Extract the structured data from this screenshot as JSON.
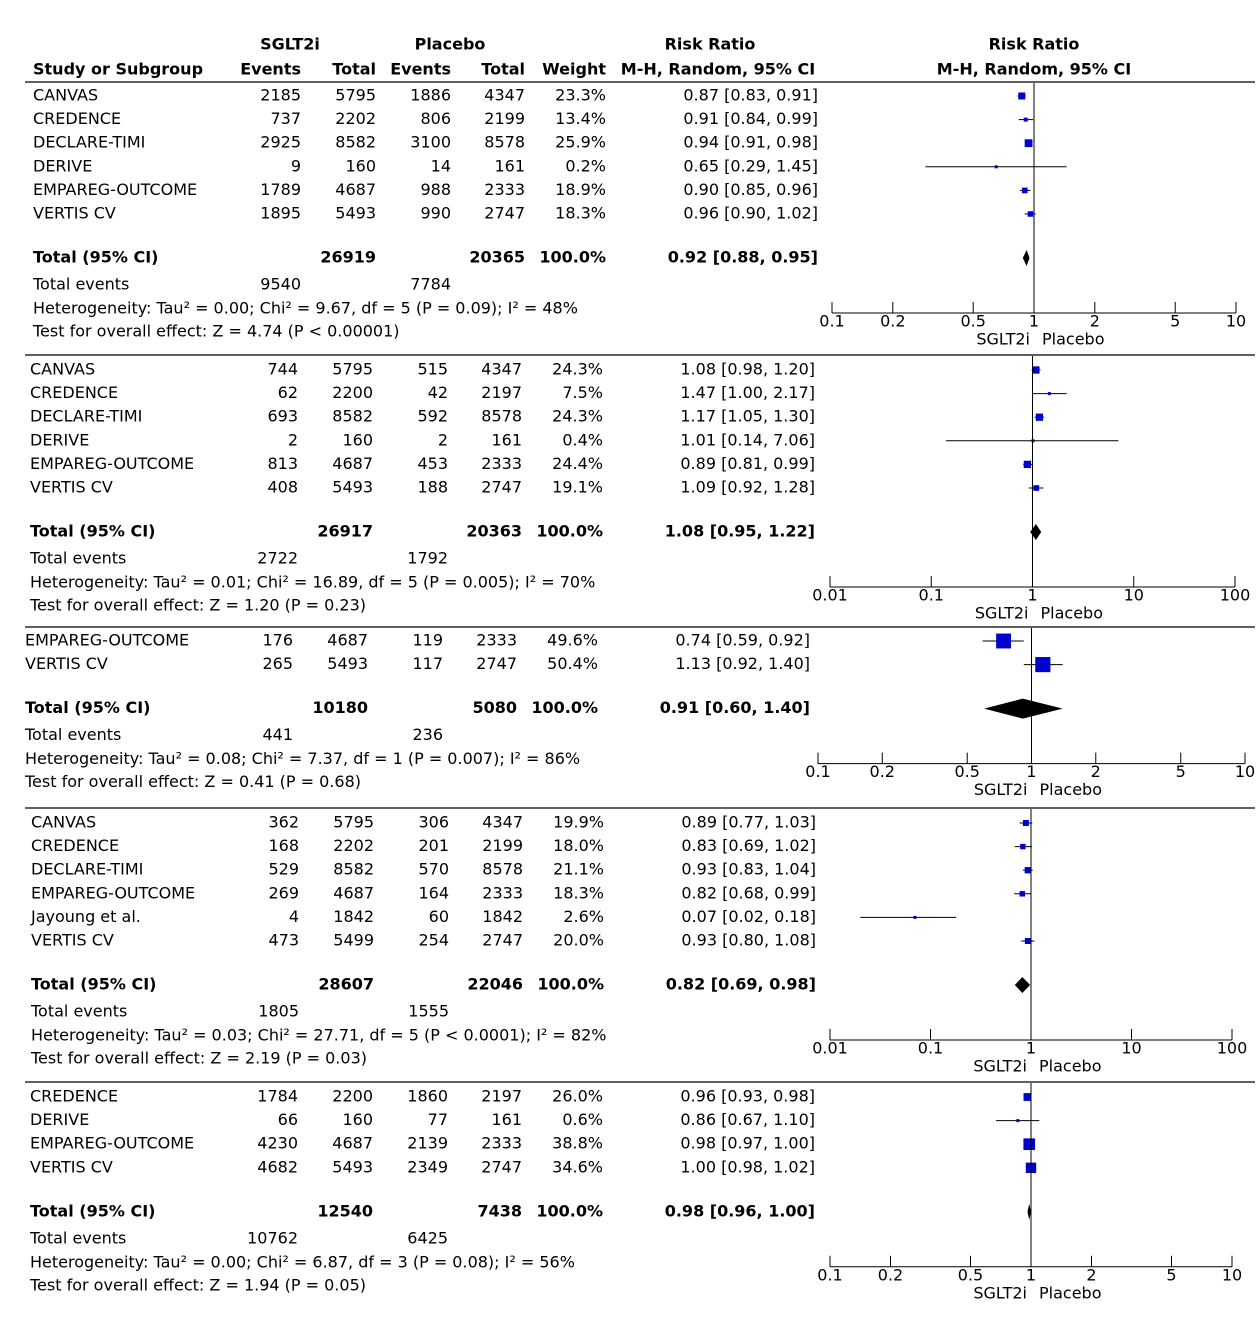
{
  "header": {
    "group_1": "SGLT2i",
    "group_2": "Placebo",
    "study": "Study or Subgroup",
    "events_1": "Events",
    "total_1": "Total",
    "events_2": "Events",
    "total_2": "Total",
    "weight": "Weight",
    "effect": "Risk Ratio",
    "method": "M-H, Random, 95% CI",
    "plot_effect": "Risk Ratio",
    "plot_method": "M-H, Random, 95% CI"
  },
  "chart_data": [
    {
      "type": "forest",
      "log_scale": true,
      "color": "#0000cc",
      "xlim": [
        0.1,
        10
      ],
      "xticks": [
        0.1,
        0.2,
        0.5,
        1,
        2,
        5,
        10
      ],
      "favours": [
        "SGLT2i",
        "Placebo"
      ],
      "studies": [
        {
          "name": "CANVAS",
          "events_1": 2185,
          "total_1": 5795,
          "events_2": 1886,
          "total_2": 4347,
          "weight": 23.3,
          "weight_label": "23.3%",
          "rr": 0.87,
          "lo": 0.83,
          "hi": 0.91,
          "rr_label": "0.87 [0.83, 0.91]"
        },
        {
          "name": "CREDENCE",
          "events_1": 737,
          "total_1": 2202,
          "events_2": 806,
          "total_2": 2199,
          "weight": 13.4,
          "weight_label": "13.4%",
          "rr": 0.91,
          "lo": 0.84,
          "hi": 0.99,
          "rr_label": "0.91 [0.84, 0.99]"
        },
        {
          "name": "DECLARE-TIMI",
          "events_1": 2925,
          "total_1": 8582,
          "events_2": 3100,
          "total_2": 8578,
          "weight": 25.9,
          "weight_label": "25.9%",
          "rr": 0.94,
          "lo": 0.91,
          "hi": 0.98,
          "rr_label": "0.94 [0.91, 0.98]"
        },
        {
          "name": "DERIVE",
          "events_1": 9,
          "total_1": 160,
          "events_2": 14,
          "total_2": 161,
          "weight": 0.2,
          "weight_label": "0.2%",
          "rr": 0.65,
          "lo": 0.29,
          "hi": 1.45,
          "rr_label": "0.65 [0.29, 1.45]"
        },
        {
          "name": "EMPAREG-OUTCOME",
          "events_1": 1789,
          "total_1": 4687,
          "events_2": 988,
          "total_2": 2333,
          "weight": 18.9,
          "weight_label": "18.9%",
          "rr": 0.9,
          "lo": 0.85,
          "hi": 0.96,
          "rr_label": "0.90 [0.85, 0.96]"
        },
        {
          "name": "VERTIS CV",
          "events_1": 1895,
          "total_1": 5493,
          "events_2": 990,
          "total_2": 2747,
          "weight": 18.3,
          "weight_label": "18.3%",
          "rr": 0.96,
          "lo": 0.9,
          "hi": 1.02,
          "rr_label": "0.96 [0.90, 1.02]"
        }
      ],
      "total": {
        "name": "Total (95% CI)",
        "total_1": 26919,
        "total_2": 20365,
        "weight": 100,
        "weight_label": "100.0%",
        "rr": 0.92,
        "lo": 0.88,
        "hi": 0.95,
        "rr_label": "0.92 [0.88, 0.95]"
      },
      "total_events": {
        "name": "Total events",
        "events_1": 9540,
        "events_2": 7784
      },
      "heterogeneity": "Heterogeneity: Tau² = 0.00; Chi² = 9.67, df = 5 (P = 0.09); I² = 48%",
      "overall_effect": "Test for overall effect: Z = 4.74 (P < 0.00001)"
    },
    {
      "type": "forest",
      "log_scale": true,
      "color": "#0000cc",
      "xlim": [
        0.01,
        100
      ],
      "xticks": [
        0.01,
        0.1,
        1,
        10,
        100
      ],
      "favours": [
        "SGLT2i",
        "Placebo"
      ],
      "studies": [
        {
          "name": "CANVAS",
          "events_1": 744,
          "total_1": 5795,
          "events_2": 515,
          "total_2": 4347,
          "weight": 24.3,
          "weight_label": "24.3%",
          "rr": 1.08,
          "lo": 0.98,
          "hi": 1.2,
          "rr_label": "1.08 [0.98, 1.20]"
        },
        {
          "name": "CREDENCE",
          "events_1": 62,
          "total_1": 2200,
          "events_2": 42,
          "total_2": 2197,
          "weight": 7.5,
          "weight_label": "7.5%",
          "rr": 1.47,
          "lo": 1.0,
          "hi": 2.17,
          "rr_label": "1.47 [1.00, 2.17]"
        },
        {
          "name": "DECLARE-TIMI",
          "events_1": 693,
          "total_1": 8582,
          "events_2": 592,
          "total_2": 8578,
          "weight": 24.3,
          "weight_label": "24.3%",
          "rr": 1.17,
          "lo": 1.05,
          "hi": 1.3,
          "rr_label": "1.17 [1.05, 1.30]"
        },
        {
          "name": "DERIVE",
          "events_1": 2,
          "total_1": 160,
          "events_2": 2,
          "total_2": 161,
          "weight": 0.4,
          "weight_label": "0.4%",
          "rr": 1.01,
          "lo": 0.14,
          "hi": 7.06,
          "rr_label": "1.01 [0.14, 7.06]"
        },
        {
          "name": "EMPAREG-OUTCOME",
          "events_1": 813,
          "total_1": 4687,
          "events_2": 453,
          "total_2": 2333,
          "weight": 24.4,
          "weight_label": "24.4%",
          "rr": 0.89,
          "lo": 0.81,
          "hi": 0.99,
          "rr_label": "0.89 [0.81, 0.99]"
        },
        {
          "name": "VERTIS CV",
          "events_1": 408,
          "total_1": 5493,
          "events_2": 188,
          "total_2": 2747,
          "weight": 19.1,
          "weight_label": "19.1%",
          "rr": 1.09,
          "lo": 0.92,
          "hi": 1.28,
          "rr_label": "1.09 [0.92, 1.28]"
        }
      ],
      "total": {
        "name": "Total (95% CI)",
        "total_1": 26917,
        "total_2": 20363,
        "weight": 100,
        "weight_label": "100.0%",
        "rr": 1.08,
        "lo": 0.95,
        "hi": 1.22,
        "rr_label": "1.08 [0.95, 1.22]"
      },
      "total_events": {
        "name": "Total events",
        "events_1": 2722,
        "events_2": 1792
      },
      "heterogeneity": "Heterogeneity: Tau² = 0.01; Chi² = 16.89, df = 5 (P = 0.005); I² = 70%",
      "overall_effect": "Test for overall effect: Z = 1.20 (P = 0.23)"
    },
    {
      "type": "forest",
      "log_scale": true,
      "color": "#0000cc",
      "xlim": [
        0.1,
        10
      ],
      "xticks": [
        0.1,
        0.2,
        0.5,
        1,
        2,
        5,
        10
      ],
      "favours": [
        "SGLT2i",
        "Placebo"
      ],
      "studies": [
        {
          "name": "EMPAREG-OUTCOME",
          "events_1": 176,
          "total_1": 4687,
          "events_2": 119,
          "total_2": 2333,
          "weight": 49.6,
          "weight_label": "49.6%",
          "rr": 0.74,
          "lo": 0.59,
          "hi": 0.92,
          "rr_label": "0.74 [0.59, 0.92]"
        },
        {
          "name": "VERTIS CV",
          "events_1": 265,
          "total_1": 5493,
          "events_2": 117,
          "total_2": 2747,
          "weight": 50.4,
          "weight_label": "50.4%",
          "rr": 1.13,
          "lo": 0.92,
          "hi": 1.4,
          "rr_label": "1.13 [0.92, 1.40]"
        }
      ],
      "total": {
        "name": "Total (95% CI)",
        "total_1": 10180,
        "total_2": 5080,
        "weight": 100,
        "weight_label": "100.0%",
        "rr": 0.91,
        "lo": 0.6,
        "hi": 1.4,
        "rr_label": "0.91 [0.60, 1.40]"
      },
      "total_events": {
        "name": "Total events",
        "events_1": 441,
        "events_2": 236
      },
      "heterogeneity": "Heterogeneity: Tau² = 0.08; Chi² = 7.37, df = 1 (P = 0.007); I² = 86%",
      "overall_effect": "Test for overall effect: Z = 0.41 (P = 0.68)"
    },
    {
      "type": "forest",
      "log_scale": true,
      "color": "#0000cc",
      "xlim": [
        0.01,
        100
      ],
      "xticks": [
        0.01,
        0.1,
        1,
        10,
        100
      ],
      "favours": [
        "SGLT2i",
        "Placebo"
      ],
      "studies": [
        {
          "name": "CANVAS",
          "events_1": 362,
          "total_1": 5795,
          "events_2": 306,
          "total_2": 4347,
          "weight": 19.9,
          "weight_label": "19.9%",
          "rr": 0.89,
          "lo": 0.77,
          "hi": 1.03,
          "rr_label": "0.89 [0.77, 1.03]"
        },
        {
          "name": "CREDENCE",
          "events_1": 168,
          "total_1": 2202,
          "events_2": 201,
          "total_2": 2199,
          "weight": 18.0,
          "weight_label": "18.0%",
          "rr": 0.83,
          "lo": 0.69,
          "hi": 1.02,
          "rr_label": "0.83 [0.69, 1.02]"
        },
        {
          "name": "DECLARE-TIMI",
          "events_1": 529,
          "total_1": 8582,
          "events_2": 570,
          "total_2": 8578,
          "weight": 21.1,
          "weight_label": "21.1%",
          "rr": 0.93,
          "lo": 0.83,
          "hi": 1.04,
          "rr_label": "0.93 [0.83, 1.04]"
        },
        {
          "name": "EMPAREG-OUTCOME",
          "events_1": 269,
          "total_1": 4687,
          "events_2": 164,
          "total_2": 2333,
          "weight": 18.3,
          "weight_label": "18.3%",
          "rr": 0.82,
          "lo": 0.68,
          "hi": 0.99,
          "rr_label": "0.82 [0.68, 0.99]"
        },
        {
          "name": "Jayoung et al.",
          "events_1": 4,
          "total_1": 1842,
          "events_2": 60,
          "total_2": 1842,
          "weight": 2.6,
          "weight_label": "2.6%",
          "rr": 0.07,
          "lo": 0.02,
          "hi": 0.18,
          "rr_label": "0.07 [0.02, 0.18]"
        },
        {
          "name": "VERTIS CV",
          "events_1": 473,
          "total_1": 5499,
          "events_2": 254,
          "total_2": 2747,
          "weight": 20.0,
          "weight_label": "20.0%",
          "rr": 0.93,
          "lo": 0.8,
          "hi": 1.08,
          "rr_label": "0.93 [0.80, 1.08]"
        }
      ],
      "total": {
        "name": "Total (95% CI)",
        "total_1": 28607,
        "total_2": 22046,
        "weight": 100,
        "weight_label": "100.0%",
        "rr": 0.82,
        "lo": 0.69,
        "hi": 0.98,
        "rr_label": "0.82 [0.69, 0.98]"
      },
      "total_events": {
        "name": "Total events",
        "events_1": 1805,
        "events_2": 1555
      },
      "heterogeneity": "Heterogeneity: Tau² = 0.03; Chi² = 27.71, df = 5 (P < 0.0001); I² = 82%",
      "overall_effect": "Test for overall effect: Z = 2.19 (P = 0.03)"
    },
    {
      "type": "forest",
      "log_scale": true,
      "color": "#0000cc",
      "xlim": [
        0.1,
        10
      ],
      "xticks": [
        0.1,
        0.2,
        0.5,
        1,
        2,
        5,
        10
      ],
      "favours": [
        "SGLT2i",
        "Placebo"
      ],
      "studies": [
        {
          "name": "CREDENCE",
          "events_1": 1784,
          "total_1": 2200,
          "events_2": 1860,
          "total_2": 2197,
          "weight": 26.0,
          "weight_label": "26.0%",
          "rr": 0.96,
          "lo": 0.93,
          "hi": 0.98,
          "rr_label": "0.96 [0.93, 0.98]"
        },
        {
          "name": "DERIVE",
          "events_1": 66,
          "total_1": 160,
          "events_2": 77,
          "total_2": 161,
          "weight": 0.6,
          "weight_label": "0.6%",
          "rr": 0.86,
          "lo": 0.67,
          "hi": 1.1,
          "rr_label": "0.86 [0.67, 1.10]"
        },
        {
          "name": "EMPAREG-OUTCOME",
          "events_1": 4230,
          "total_1": 4687,
          "events_2": 2139,
          "total_2": 2333,
          "weight": 38.8,
          "weight_label": "38.8%",
          "rr": 0.98,
          "lo": 0.97,
          "hi": 1.0,
          "rr_label": "0.98 [0.97, 1.00]"
        },
        {
          "name": "VERTIS CV",
          "events_1": 4682,
          "total_1": 5493,
          "events_2": 2349,
          "total_2": 2747,
          "weight": 34.6,
          "weight_label": "34.6%",
          "rr": 1.0,
          "lo": 0.98,
          "hi": 1.02,
          "rr_label": "1.00 [0.98, 1.02]"
        }
      ],
      "total": {
        "name": "Total (95% CI)",
        "total_1": 12540,
        "total_2": 7438,
        "weight": 100,
        "weight_label": "100.0%",
        "rr": 0.98,
        "lo": 0.96,
        "hi": 1.0,
        "rr_label": "0.98 [0.96, 1.00]"
      },
      "total_events": {
        "name": "Total events",
        "events_1": 10762,
        "events_2": 6425
      },
      "heterogeneity": "Heterogeneity: Tau² = 0.00; Chi² = 6.87, df = 3 (P = 0.08); I² = 56%",
      "overall_effect": "Test for overall effect: Z = 1.94 (P = 0.05)"
    }
  ]
}
